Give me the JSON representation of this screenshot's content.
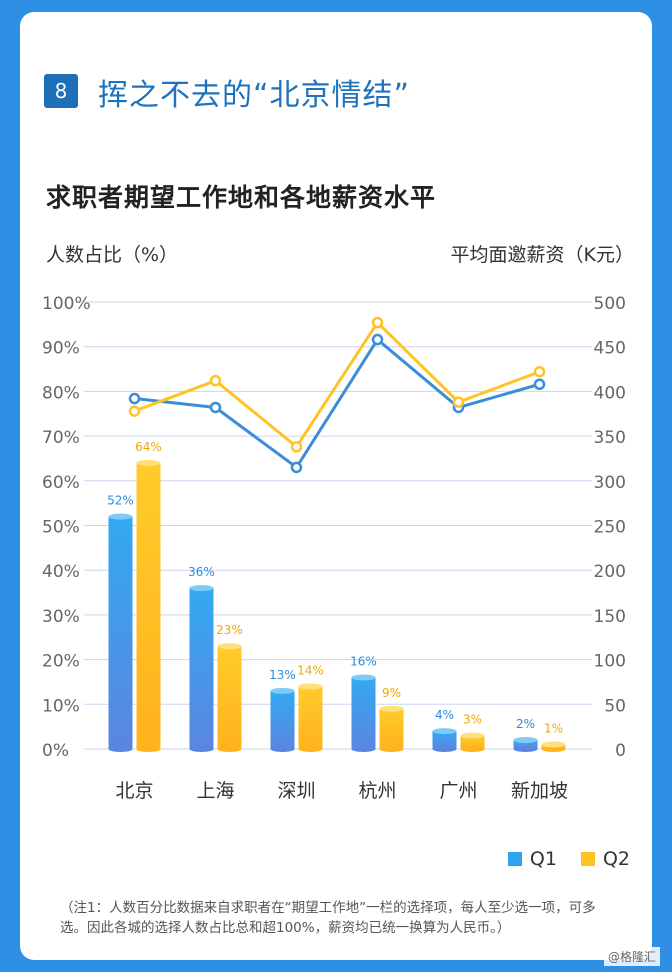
{
  "section": {
    "number": "8",
    "title": "挥之不去的“北京情结”"
  },
  "chart_data": {
    "type": "bar+line",
    "title": "求职者期望工作地和各地薪资水平",
    "ylabel_left": "人数占比（%）",
    "ylabel_right": "平均面邀薪资（K元）",
    "categories": [
      "北京",
      "上海",
      "深圳",
      "杭州",
      "广州",
      "新加坡"
    ],
    "ylim_left": [
      0,
      100
    ],
    "ylim_right": [
      0,
      500
    ],
    "left_ticks": [
      "100%",
      "90%",
      "80%",
      "70%",
      "60%",
      "50%",
      "40%",
      "30%",
      "20%",
      "10%",
      "0%"
    ],
    "right_ticks": [
      "500",
      "450",
      "400",
      "350",
      "300",
      "250",
      "200",
      "150",
      "100",
      "50",
      "0"
    ],
    "grid": true,
    "legend_position": "bottom-right",
    "bar_series": [
      {
        "name": "Q1",
        "color": "#2FA3EE",
        "values": [
          52,
          36,
          13,
          16,
          4,
          2
        ],
        "labels": [
          "52%",
          "36%",
          "13%",
          "16%",
          "4%",
          "2%"
        ]
      },
      {
        "name": "Q2",
        "color": "#FFC423",
        "values": [
          64,
          23,
          14,
          9,
          3,
          1
        ],
        "labels": [
          "64%",
          "23%",
          "14%",
          "9%",
          "3%",
          "1%"
        ]
      }
    ],
    "line_series": [
      {
        "name": "Q1",
        "color": "#3A8DD6",
        "values": [
          392,
          382,
          315,
          458,
          382,
          408
        ]
      },
      {
        "name": "Q2",
        "color": "#FFC423",
        "values": [
          378,
          412,
          338,
          477,
          388,
          422
        ]
      }
    ]
  },
  "legend": {
    "q1": "Q1",
    "q2": "Q2"
  },
  "note": "（注1：人数百分比数据来自求职者在“期望工作地”一栏的选择项，每人至少选一项，可多选。因此各城的选择人数占比总和超100%，薪资均已统一换算为人民币。）",
  "badge": "@格隆汇"
}
